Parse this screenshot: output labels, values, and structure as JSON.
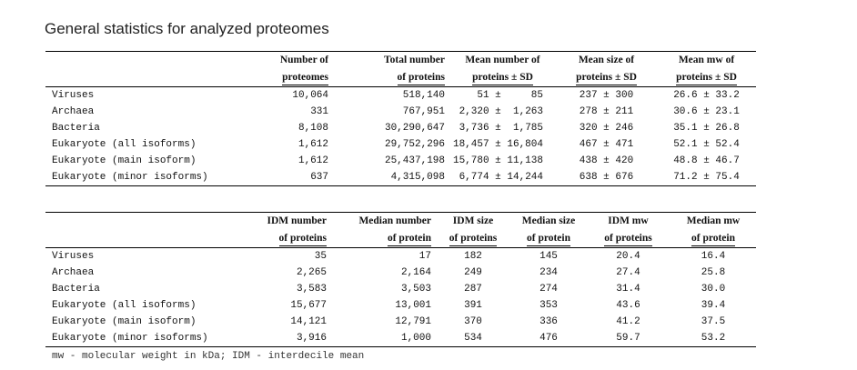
{
  "title": "General statistics for analyzed proteomes",
  "table1": {
    "headers": [
      {
        "line1": "Number of",
        "line2": "proteomes"
      },
      {
        "line1": "Total number",
        "line2": "of proteins"
      },
      {
        "line1": "Mean number of",
        "line2": "proteins ± SD"
      },
      {
        "line1": "Mean size of",
        "line2": "proteins ± SD"
      },
      {
        "line1": "Mean mw of",
        "line2": "proteins ± SD"
      }
    ],
    "rows": [
      {
        "label": "Viruses",
        "proteomes": "10,064",
        "total": "518,140",
        "mean_num": "51 ±     85",
        "mean_size": "237 ± 300",
        "mean_mw": "26.6 ± 33.2"
      },
      {
        "label": "Archaea",
        "proteomes": "331",
        "total": "767,951",
        "mean_num": "2,320 ±  1,263",
        "mean_size": "278 ± 211",
        "mean_mw": "30.6 ± 23.1"
      },
      {
        "label": "Bacteria",
        "proteomes": "8,108",
        "total": "30,290,647",
        "mean_num": "3,736 ±  1,785",
        "mean_size": "320 ± 246",
        "mean_mw": "35.1 ± 26.8"
      },
      {
        "label": "Eukaryote (all isoforms)",
        "proteomes": "1,612",
        "total": "29,752,296",
        "mean_num": "18,457 ± 16,804",
        "mean_size": "467 ± 471",
        "mean_mw": "52.1 ± 52.4"
      },
      {
        "label": "Eukaryote (main isoform)",
        "proteomes": "1,612",
        "total": "25,437,198",
        "mean_num": "15,780 ± 11,138",
        "mean_size": "438 ± 420",
        "mean_mw": "48.8 ± 46.7"
      },
      {
        "label": "Eukaryote (minor isoforms)",
        "proteomes": "637",
        "total": "4,315,098",
        "mean_num": "6,774 ± 14,244",
        "mean_size": "638 ± 676",
        "mean_mw": "71.2 ± 75.4"
      }
    ]
  },
  "table2": {
    "headers": [
      {
        "line1": "IDM number",
        "line2": "of proteins"
      },
      {
        "line1": "Median number",
        "line2": "of protein"
      },
      {
        "line1": "IDM size",
        "line2": "of proteins"
      },
      {
        "line1": "Median size",
        "line2": "of protein"
      },
      {
        "line1": "IDM  mw",
        "line2": "of proteins"
      },
      {
        "line1": "Median mw",
        "line2": "of protein"
      }
    ],
    "rows": [
      {
        "label": "Viruses",
        "idm_num": "35",
        "med_num": "17",
        "idm_size": "182",
        "med_size": "145",
        "idm_mw": "20.4",
        "med_mw": "16.4"
      },
      {
        "label": "Archaea",
        "idm_num": "2,265",
        "med_num": "2,164",
        "idm_size": "249",
        "med_size": "234",
        "idm_mw": "27.4",
        "med_mw": "25.8"
      },
      {
        "label": "Bacteria",
        "idm_num": "3,583",
        "med_num": "3,503",
        "idm_size": "287",
        "med_size": "274",
        "idm_mw": "31.4",
        "med_mw": "30.0"
      },
      {
        "label": "Eukaryote (all isoforms)",
        "idm_num": "15,677",
        "med_num": "13,001",
        "idm_size": "391",
        "med_size": "353",
        "idm_mw": "43.6",
        "med_mw": "39.4"
      },
      {
        "label": "Eukaryote (main isoform)",
        "idm_num": "14,121",
        "med_num": "12,791",
        "idm_size": "370",
        "med_size": "336",
        "idm_mw": "41.2",
        "med_mw": "37.5"
      },
      {
        "label": "Eukaryote (minor isoforms)",
        "idm_num": "3,916",
        "med_num": "1,000",
        "idm_size": "534",
        "med_size": "476",
        "idm_mw": "59.7",
        "med_mw": "53.2"
      }
    ]
  },
  "footnote": "mw - molecular weight in kDa; IDM - interdecile mean"
}
